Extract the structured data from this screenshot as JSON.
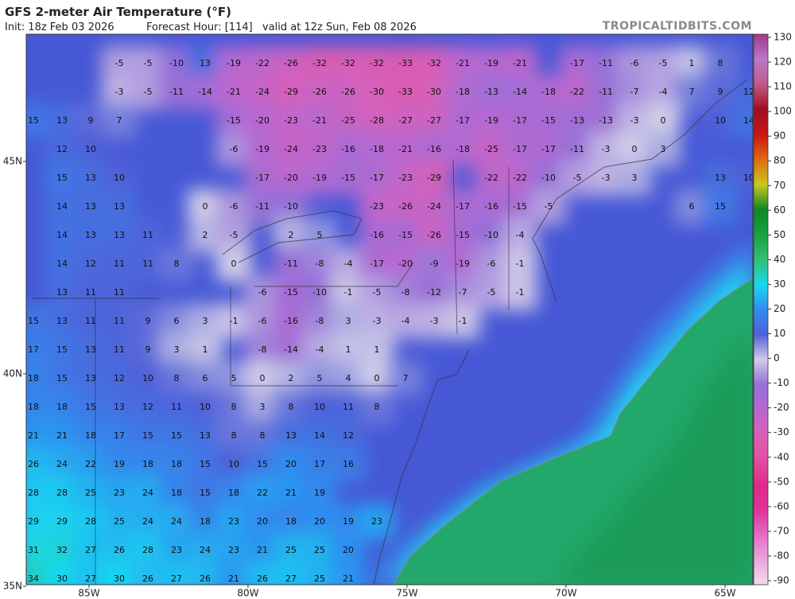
{
  "header": {
    "title": "GFS 2-meter Air Temperature (°F)",
    "init": "Init: 18z Feb 03 2026",
    "forecast_hour": "Forecast Hour: [114]",
    "valid": "valid at 12z Sun, Feb 08 2026",
    "credit": "TROPICALTIDBITS.COM"
  },
  "lat_ticks": [
    {
      "value": 45,
      "label": "45N"
    },
    {
      "value": 40,
      "label": "40N"
    },
    {
      "value": 35,
      "label": "35N"
    }
  ],
  "lon_ticks": [
    {
      "value": -85,
      "label": "85W"
    },
    {
      "value": -80,
      "label": "80W"
    },
    {
      "value": -75,
      "label": "75W"
    },
    {
      "value": -70,
      "label": "70W"
    },
    {
      "value": -65,
      "label": "65W"
    }
  ],
  "colorbar": {
    "lim": [
      -90,
      130
    ],
    "ticks": [
      -90,
      -80,
      -70,
      -60,
      -50,
      -40,
      -30,
      -20,
      -10,
      0,
      10,
      20,
      30,
      40,
      50,
      60,
      70,
      80,
      90,
      100,
      110,
      120,
      130
    ],
    "colors": [
      "#f3dcf0",
      "#eaa6dc",
      "#e46cc6",
      "#e0309a",
      "#e02a88",
      "#e050a0",
      "#d860b8",
      "#b868d0",
      "#9470d8",
      "#d0cce8",
      "#5060d8",
      "#2e8ef0",
      "#18d8f0",
      "#30c070",
      "#18a040",
      "#108828",
      "#c8c820",
      "#e06a10",
      "#c81414",
      "#a01020",
      "#c05a88",
      "#b878c8",
      "#a03a8a"
    ]
  },
  "grid": [
    [
      null,
      null,
      null,
      -5,
      -5,
      -10,
      13,
      -19,
      -22,
      -26,
      -32,
      -32,
      -32,
      -33,
      -32,
      -21,
      -19,
      -21,
      null,
      -17,
      -11,
      -6,
      -5,
      1,
      8,
      null
    ],
    [
      null,
      null,
      null,
      -3,
      -5,
      -11,
      -14,
      -21,
      -24,
      -29,
      -26,
      -26,
      -30,
      -33,
      -30,
      -18,
      -13,
      -14,
      -18,
      -22,
      -11,
      -7,
      -4,
      7,
      9,
      12
    ],
    [
      15,
      13,
      9,
      7,
      null,
      null,
      null,
      -15,
      -20,
      -23,
      -21,
      -25,
      -28,
      -27,
      -27,
      -17,
      -19,
      -17,
      -15,
      -13,
      -13,
      -3,
      0,
      null,
      10,
      14
    ],
    [
      null,
      12,
      10,
      null,
      null,
      null,
      null,
      -6,
      -19,
      -24,
      -23,
      -16,
      -18,
      -21,
      -16,
      -18,
      -25,
      -17,
      -17,
      -11,
      -3,
      0,
      3,
      null,
      null,
      null
    ],
    [
      null,
      15,
      13,
      10,
      null,
      null,
      null,
      null,
      -17,
      -20,
      -19,
      -15,
      -17,
      -23,
      -29,
      null,
      -22,
      -22,
      -10,
      -5,
      -3,
      3,
      null,
      null,
      13,
      10
    ],
    [
      null,
      14,
      13,
      13,
      null,
      null,
      0,
      -6,
      -11,
      -10,
      null,
      null,
      -23,
      -26,
      -24,
      -17,
      -16,
      -15,
      -5,
      null,
      null,
      null,
      null,
      6,
      15,
      null
    ],
    [
      null,
      14,
      13,
      13,
      11,
      null,
      2,
      -5,
      null,
      2,
      5,
      null,
      -16,
      -15,
      -26,
      -15,
      -10,
      -4,
      null,
      null,
      null,
      null,
      null,
      null,
      null,
      null
    ],
    [
      null,
      14,
      12,
      11,
      11,
      8,
      null,
      0,
      null,
      -11,
      -8,
      -4,
      -17,
      -20,
      -9,
      -19,
      -6,
      -1,
      null,
      null,
      null,
      null,
      null,
      null,
      null,
      null
    ],
    [
      null,
      13,
      11,
      11,
      null,
      null,
      null,
      null,
      -6,
      -15,
      -10,
      -1,
      -5,
      -8,
      -12,
      -7,
      -5,
      -1,
      null,
      null,
      null,
      null,
      null,
      null,
      null,
      null
    ],
    [
      15,
      13,
      11,
      11,
      9,
      6,
      3,
      -1,
      -6,
      -16,
      -8,
      3,
      -3,
      -4,
      -3,
      -1,
      null,
      null,
      null,
      null,
      null,
      null,
      null,
      null,
      null,
      null
    ],
    [
      17,
      15,
      13,
      11,
      9,
      3,
      1,
      null,
      -8,
      -14,
      -4,
      1,
      1,
      null,
      null,
      null,
      null,
      null,
      null,
      null,
      null,
      null,
      null,
      null,
      null,
      null
    ],
    [
      18,
      15,
      13,
      12,
      10,
      8,
      6,
      5,
      0,
      2,
      5,
      4,
      0,
      7,
      null,
      null,
      null,
      null,
      null,
      null,
      null,
      null,
      null,
      null,
      null,
      null
    ],
    [
      18,
      18,
      15,
      13,
      12,
      11,
      10,
      8,
      3,
      8,
      10,
      11,
      8,
      null,
      null,
      null,
      null,
      null,
      null,
      null,
      null,
      null,
      null,
      null,
      null,
      null
    ],
    [
      21,
      21,
      18,
      17,
      15,
      15,
      13,
      8,
      8,
      13,
      14,
      12,
      null,
      null,
      null,
      null,
      null,
      null,
      null,
      null,
      null,
      null,
      null,
      null,
      null,
      null
    ],
    [
      26,
      24,
      22,
      19,
      18,
      18,
      15,
      10,
      15,
      20,
      17,
      16,
      null,
      null,
      null,
      null,
      null,
      null,
      null,
      null,
      null,
      null,
      null,
      null,
      null,
      null
    ],
    [
      28,
      28,
      25,
      23,
      24,
      18,
      15,
      18,
      22,
      21,
      19,
      null,
      null,
      null,
      null,
      null,
      null,
      null,
      null,
      null,
      null,
      null,
      null,
      null,
      null,
      null
    ],
    [
      29,
      29,
      28,
      25,
      24,
      24,
      18,
      23,
      20,
      18,
      20,
      19,
      23,
      null,
      null,
      null,
      null,
      null,
      null,
      null,
      null,
      null,
      null,
      null,
      null,
      null
    ],
    [
      31,
      32,
      27,
      26,
      28,
      23,
      24,
      23,
      21,
      25,
      25,
      20,
      null,
      null,
      null,
      null,
      null,
      null,
      null,
      null,
      null,
      null,
      null,
      null,
      null,
      null
    ],
    [
      34,
      30,
      27,
      30,
      26,
      27,
      26,
      21,
      26,
      27,
      25,
      21,
      null,
      null,
      null,
      null,
      null,
      null,
      null,
      null,
      null,
      null,
      null,
      null,
      null,
      null
    ]
  ]
}
